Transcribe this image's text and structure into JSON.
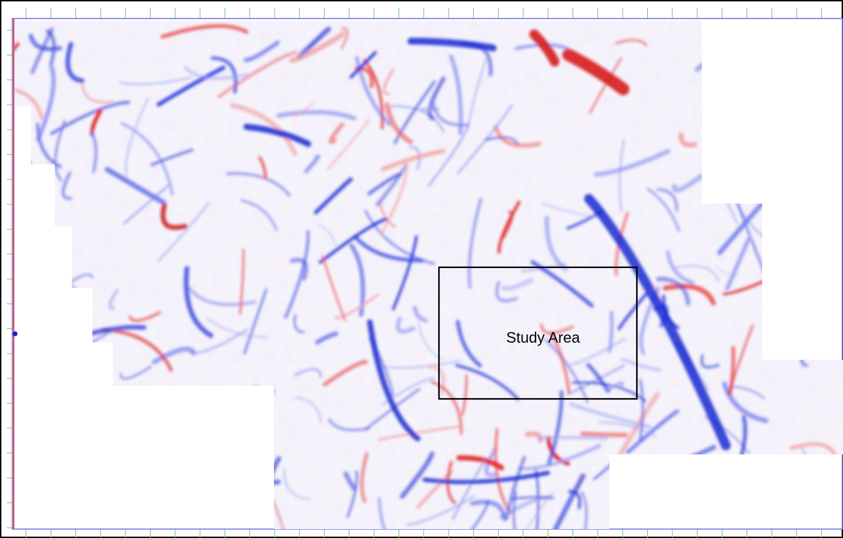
{
  "annotation": {
    "label": "Study Area"
  }
}
